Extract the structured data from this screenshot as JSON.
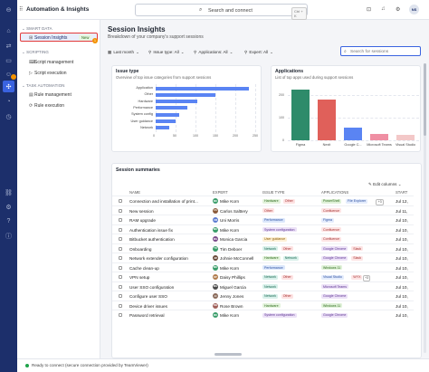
{
  "app": {
    "title": "Automation & Insights",
    "avatar_initials": "NS"
  },
  "search": {
    "label": "Search and connect",
    "shortcut": "Ctrl + K"
  },
  "sidenav": {
    "section_smart": "SMART DATA",
    "active_item": "Session Insights",
    "new_badge": "New",
    "section_scripting": "SCRIPTING",
    "script_management": "Script management",
    "script_execution": "Script execution",
    "section_task": "TASK AUTOMATION",
    "rule_management": "Rule management",
    "rule_execution": "Rule execution"
  },
  "page": {
    "title": "Session Insights",
    "subtitle": "Breakdown of your company's support sessions",
    "filters": [
      "Last month",
      "Issue type: All",
      "Applications: All",
      "Expert: All"
    ],
    "search_placeholder": "Search for sessions"
  },
  "issue_chart": {
    "title": "Issue type",
    "subtitle": "Overview of top issue categories from support sessions",
    "chart_data": {
      "type": "bar",
      "orientation": "horizontal",
      "categories": [
        "Application",
        "Other",
        "Hardware",
        "Performance",
        "System config",
        "User guidance",
        "Network"
      ],
      "values": [
        235,
        150,
        105,
        80,
        60,
        50,
        35
      ],
      "ticks": [
        "0",
        "50",
        "100",
        "150",
        "200",
        "250"
      ],
      "xlim": [
        0,
        250
      ],
      "color": "#5a84f3"
    }
  },
  "app_chart": {
    "title": "Applications",
    "subtitle": "List of top apps used during support sessions",
    "chart_data": {
      "type": "bar",
      "categories": [
        "Figma",
        "Nexit",
        "Google C...",
        "Microsoft Teams",
        "Visual Studio"
      ],
      "values": [
        225,
        180,
        55,
        30,
        25
      ],
      "colors": [
        "#2e8b6a",
        "#e0605a",
        "#5a84f3",
        "#ef8fa3",
        "#f3c8c8"
      ],
      "ticks": [
        "200",
        "100",
        "0"
      ],
      "ylim": [
        0,
        250
      ]
    }
  },
  "table": {
    "title": "Session summaries",
    "edit_columns": "Edit columns",
    "headers": {
      "name": "NAME",
      "expert": "EXPERT",
      "issue": "ISSUE TYPE",
      "apps": "APPLICATIONS",
      "start": "START"
    },
    "rows": [
      {
        "name": "Connection and installation of print...",
        "expert": "Mike Korn",
        "init": "MK",
        "av": "#3a9d6a",
        "issues": [
          "Hardware",
          "Other"
        ],
        "apps": [
          "PowerShell",
          "File Explorer"
        ],
        "extra": "+3",
        "start": "Jul 12,"
      },
      {
        "name": "New session",
        "expert": "Carlos Salttery",
        "init": "CS",
        "av": "#8a5a3a",
        "issues": [
          "Other"
        ],
        "apps": [
          "Confluence"
        ],
        "extra": "",
        "start": "Jul 11,"
      },
      {
        "name": "RAM upgrade",
        "expert": "Uni Morris",
        "init": "UM",
        "av": "#5a7ad0",
        "issues": [
          "Performance"
        ],
        "apps": [
          "Figma"
        ],
        "extra": "",
        "start": "Jul 10,"
      },
      {
        "name": "Authentication issue fix",
        "expert": "Mike Korn",
        "init": "MK",
        "av": "#3a9d6a",
        "issues": [
          "System configuration"
        ],
        "apps": [
          "Confluence"
        ],
        "extra": "",
        "start": "Jul 10,"
      },
      {
        "name": "Bitbucket authentication",
        "expert": "Monica Garcia",
        "init": "MG",
        "av": "#7a4a8a",
        "issues": [
          "User guidance"
        ],
        "apps": [
          "Confluence"
        ],
        "extra": "",
        "start": "Jul 10,"
      },
      {
        "name": "Onboarding",
        "expert": "Tim Deboer",
        "init": "TD",
        "av": "#3a9d6a",
        "issues": [
          "Network",
          "Other"
        ],
        "apps": [
          "Google Chrome",
          "Slack"
        ],
        "extra": "",
        "start": "Jul 10,"
      },
      {
        "name": "Network extender configuration",
        "expert": "Johnie McConnell",
        "init": "JM",
        "av": "#6a4a3a",
        "issues": [
          "Hardware",
          "Network"
        ],
        "apps": [
          "Google Chrome",
          "Slack"
        ],
        "extra": "",
        "start": "Jul 10,"
      },
      {
        "name": "Cache clean-up",
        "expert": "Mike Korn",
        "init": "MK",
        "av": "#3a9d6a",
        "issues": [
          "Performance"
        ],
        "apps": [
          "Windows 11"
        ],
        "extra": "",
        "start": "Jul 10,"
      },
      {
        "name": "VPN setup",
        "expert": "Daisy Phillips",
        "init": "DP",
        "av": "#b07a4a",
        "issues": [
          "Network",
          "Other"
        ],
        "apps": [
          "Visual Studio",
          "WYX"
        ],
        "extra": "+3",
        "start": "Jul 10,"
      },
      {
        "name": "User SSO configuration",
        "expert": "Miguel Garcia",
        "init": "MG",
        "av": "#4a4a4a",
        "issues": [
          "Network"
        ],
        "apps": [
          "Microsoft Teams"
        ],
        "extra": "",
        "start": "Jul 10,"
      },
      {
        "name": "Configure user SSO",
        "expert": "Jenny Jones",
        "init": "JJ",
        "av": "#8a6a5a",
        "issues": [
          "Network",
          "Other"
        ],
        "apps": [
          "Google Chrome"
        ],
        "extra": "",
        "start": "Jul 10,"
      },
      {
        "name": "Device driver issues",
        "expert": "Rose Brown",
        "init": "RB",
        "av": "#a0605a",
        "issues": [
          "Hardware"
        ],
        "apps": [
          "Windows 11"
        ],
        "extra": "",
        "start": "Jul 10,"
      },
      {
        "name": "Password retrieval",
        "expert": "Mike Korn",
        "init": "MK",
        "av": "#3a9d6a",
        "issues": [
          "System configuration"
        ],
        "apps": [
          "Google Chrome"
        ],
        "extra": "",
        "start": "Jul 10,"
      }
    ]
  },
  "status": {
    "text": "Ready to connect (secure connection provided by TeamViewer)"
  }
}
